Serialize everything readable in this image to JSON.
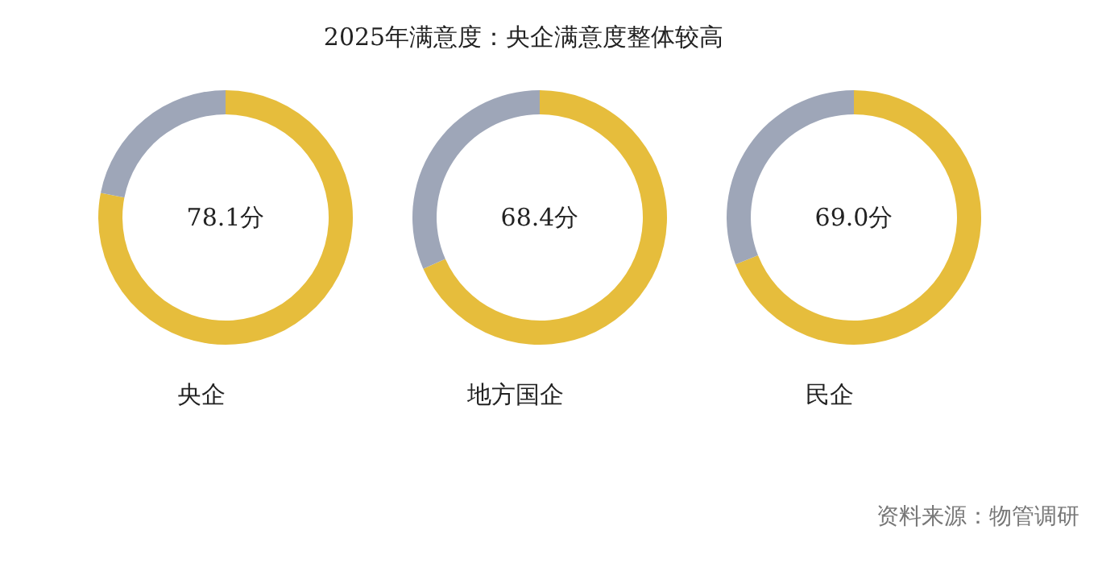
{
  "chart_data": [
    {
      "type": "other",
      "title": "2025年满意度：央企满意度整体较高"
    },
    {
      "type": "donut",
      "xlabel": "央企",
      "categories": [
        null,
        null
      ],
      "values": [
        78.1,
        21.9
      ],
      "colors": [
        "#e6bd3c",
        "#9ea6b8"
      ],
      "annotations": [
        "78.1分"
      ]
    },
    {
      "type": "donut",
      "xlabel": "地方国企",
      "categories": [
        null,
        null
      ],
      "values": [
        68.4,
        31.6
      ],
      "colors": [
        "#e6bd3c",
        "#9ea6b8"
      ],
      "annotations": [
        "68.4分"
      ]
    },
    {
      "type": "donut",
      "xlabel": "民企",
      "categories": [
        null,
        null
      ],
      "values": [
        69.0,
        31.0
      ],
      "colors": [
        "#e6bd3c",
        "#9ea6b8"
      ],
      "annotations": [
        "69.0分"
      ]
    },
    {
      "type": "other",
      "annotations": [
        "资料来源：物管调研"
      ]
    }
  ]
}
